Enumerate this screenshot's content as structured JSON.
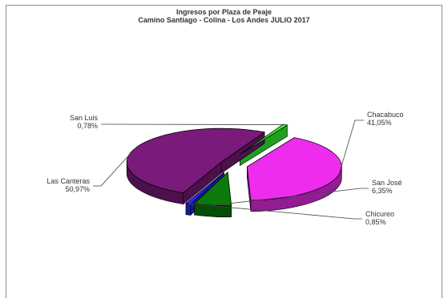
{
  "title_line1": "Ingresos por Plaza de Peaje",
  "title_line2": "Camino Santiago - Colina - Los Andes JULIO 2017",
  "chart_data": {
    "type": "pie",
    "title": "Ingresos por Plaza de Peaje",
    "subtitle": "Camino Santiago - Colina - Los Andes JULIO 2017",
    "three_d": true,
    "exploded": true,
    "slices": [
      {
        "label": "Chacabuco",
        "value_text": "41,05%",
        "value": 41.05,
        "color": "#ee2cee"
      },
      {
        "label": "San José",
        "value_text": "6,35%",
        "value": 6.35,
        "color": "#0a7a0a"
      },
      {
        "label": "Chicureo",
        "value_text": "0,85%",
        "value": 0.85,
        "color": "#2a2aff"
      },
      {
        "label": "Las Canteras",
        "value_text": "50,97%",
        "value": 50.97,
        "color": "#7a1a7a"
      },
      {
        "label": "San Luis",
        "value_text": "0,78%",
        "value": 0.78,
        "color": "#33ff33"
      }
    ]
  }
}
